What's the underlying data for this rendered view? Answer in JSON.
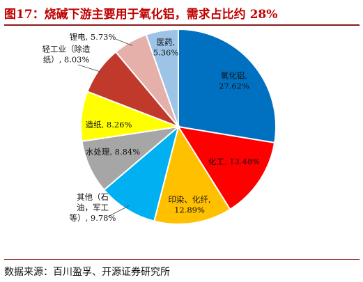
{
  "figure": {
    "title": "图17：烧碱下游主要用于氧化铝，需求占比约 28%",
    "source": "数据来源：百川盈孚、开源证券研究所"
  },
  "chart_data": {
    "type": "pie",
    "title": "",
    "start_angle_deg": 0,
    "direction": "clockwise",
    "slices": [
      {
        "name": "氧化铝",
        "value": 27.62,
        "value_label": "27.62%",
        "color": "#0070c0",
        "label_lines": [
          "氧化铝,",
          "27.62%"
        ]
      },
      {
        "name": "化工",
        "value": 13.48,
        "value_label": "13.48%",
        "color": "#ff0000",
        "label_lines": [
          "化工, 13.48%"
        ]
      },
      {
        "name": "印染、化纤",
        "value": 12.89,
        "value_label": "12.89%",
        "color": "#ffc000",
        "label_lines": [
          "印染、化纤,",
          "12.89%"
        ]
      },
      {
        "name": "其他（石油，军工等）",
        "value": 9.78,
        "value_label": "9.78%",
        "color": "#00b0f0",
        "label_lines": [
          "其他（石",
          "油，军工",
          "等）, 9.78%"
        ]
      },
      {
        "name": "水处理",
        "value": 8.84,
        "value_label": "8.84%",
        "color": "#a6a6a6",
        "label_lines": [
          "水处理, 8.84%"
        ]
      },
      {
        "name": "造纸",
        "value": 8.26,
        "value_label": "8.26%",
        "color": "#ffff00",
        "label_lines": [
          "造纸, 8.26%"
        ]
      },
      {
        "name": "轻工业（除造纸）",
        "value": 8.03,
        "value_label": "8.03%",
        "color": "#c0392b",
        "label_lines": [
          "轻工业（除造",
          "纸）, 8.03%"
        ]
      },
      {
        "name": "锂电",
        "value": 5.73,
        "value_label": "5.73%",
        "color": "#e6b0aa",
        "label_lines": [
          "锂电, 5.73%"
        ]
      },
      {
        "name": "医药",
        "value": 5.36,
        "value_label": "5.36%",
        "color": "#9dc3e6",
        "label_lines": [
          "医药,",
          "5.36%"
        ]
      }
    ]
  }
}
